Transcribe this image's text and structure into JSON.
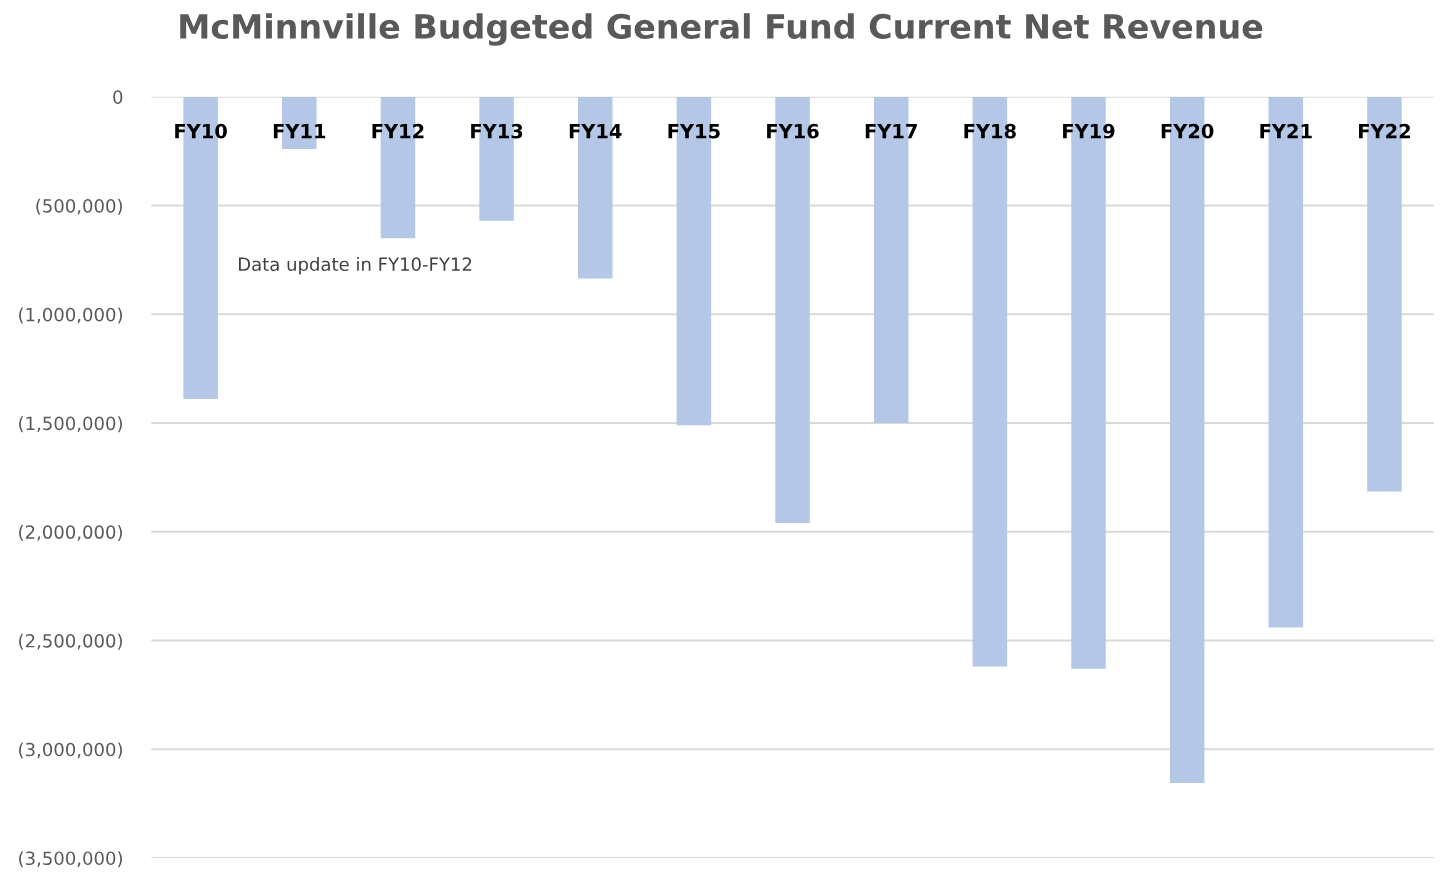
{
  "chart_data": {
    "type": "bar",
    "title": "McMinnville Budgeted General Fund Current Net Revenue",
    "categories": [
      "FY10",
      "FY11",
      "FY12",
      "FY13",
      "FY14",
      "FY15",
      "FY16",
      "FY17",
      "FY18",
      "FY19",
      "FY20",
      "FY21",
      "FY22"
    ],
    "values": [
      -1390000,
      -240000,
      -650000,
      -570000,
      -835000,
      -1510000,
      -1960000,
      -1500000,
      -2620000,
      -2630000,
      -3155000,
      -2440000,
      -1815000
    ],
    "color": "#b4c7e7",
    "ylim": [
      -3500000,
      0
    ],
    "yticks": [
      {
        "value": 0,
        "label": "0"
      },
      {
        "value": -500000,
        "label": "(500,000)"
      },
      {
        "value": -1000000,
        "label": "(1,000,000)"
      },
      {
        "value": -1500000,
        "label": "(1,500,000)"
      },
      {
        "value": -2000000,
        "label": "(2,000,000)"
      },
      {
        "value": -2500000,
        "label": "(2,500,000)"
      },
      {
        "value": -3000000,
        "label": "(3,000,000)"
      },
      {
        "value": -3500000,
        "label": "(3,500,000)"
      }
    ],
    "grid": "y",
    "annotations": [
      "Data update in FY10-FY12"
    ]
  }
}
